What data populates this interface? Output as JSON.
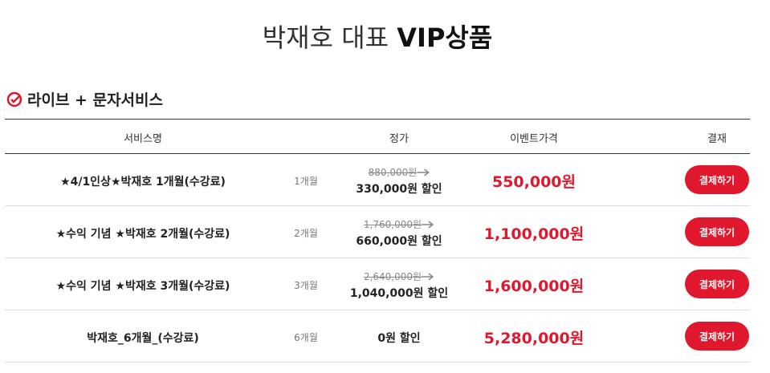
{
  "header": {
    "title_light": "박재호 대표",
    "title_bold": "VIP상품"
  },
  "section": {
    "title": "라이브 + 문자서비스"
  },
  "table": {
    "columns": {
      "name": "서비스명",
      "price": "정가",
      "event": "이벤트가격",
      "pay": "결재"
    },
    "rows": [
      {
        "name": "★4/1인상★박재호 1개월(수강료)",
        "period": "1개월",
        "original": "880,000원",
        "discount": "330,000원 할인",
        "event": "550,000원",
        "button": "결제하기"
      },
      {
        "name": "★수익 기념 ★박재호 2개월(수강료)",
        "period": "2개월",
        "original": "1,760,000원",
        "discount": "660,000원 할인",
        "event": "1,100,000원",
        "button": "결제하기"
      },
      {
        "name": "★수익 기념 ★박재호 3개월(수강료)",
        "period": "3개월",
        "original": "2,640,000원",
        "discount": "1,040,000원 할인",
        "event": "1,600,000원",
        "button": "결제하기"
      },
      {
        "name": "박재호_6개월_(수강료)",
        "period": "6개월",
        "discount": "0원 할인",
        "event": "5,280,000원",
        "button": "결제하기"
      }
    ]
  }
}
